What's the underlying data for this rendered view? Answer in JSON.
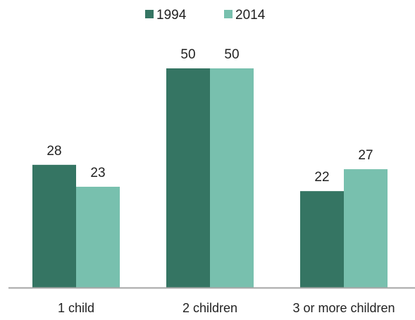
{
  "chart_data": {
    "type": "bar",
    "categories": [
      "1 child",
      "2 children",
      "3 or more children"
    ],
    "series": [
      {
        "name": "1994",
        "values": [
          28,
          50,
          22
        ],
        "color": "#357563"
      },
      {
        "name": "2014",
        "values": [
          23,
          50,
          27
        ],
        "color": "#78c0ae"
      }
    ],
    "title": "",
    "xlabel": "",
    "ylabel": "",
    "ylim": [
      0,
      50
    ],
    "grid": false,
    "legend": "top-center",
    "axis_color": "#a6a6a6"
  }
}
